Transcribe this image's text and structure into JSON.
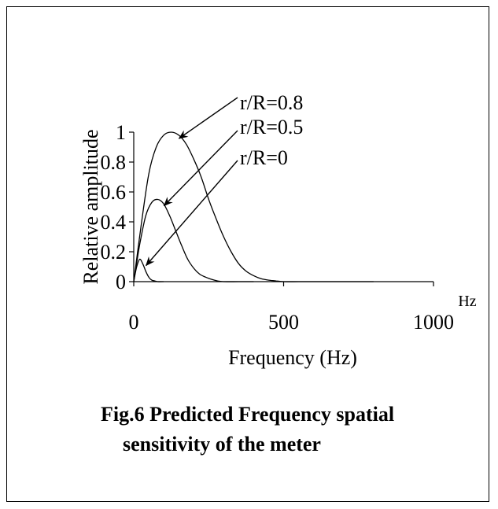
{
  "caption": {
    "line1": "Fig.6 Predicted Frequency spatial",
    "line2": "sensitivity of the meter"
  },
  "chart_data": {
    "type": "line",
    "title": "",
    "xlabel": "Frequency (Hz)",
    "ylabel": "Relative amplitude",
    "x_unit_label": "Hz",
    "xlim": [
      0,
      1000
    ],
    "ylim": [
      0,
      1
    ],
    "x_ticks": [
      0,
      500,
      1000
    ],
    "x_tick_labels": [
      "0",
      "500",
      "1000"
    ],
    "y_ticks": [
      0,
      0.2,
      0.4,
      0.6,
      0.8,
      1
    ],
    "y_tick_labels": [
      "0",
      "0.2",
      "0.4",
      "0.6",
      "0.8",
      "1"
    ],
    "grid": false,
    "colors": {
      "line": "#000000"
    },
    "series": [
      {
        "name": "r/R=0.8",
        "x": [
          0,
          25,
          50,
          75,
          100,
          125,
          150,
          175,
          200,
          225,
          250,
          275,
          300,
          325,
          350,
          375,
          400,
          425,
          450,
          475,
          500,
          550,
          600,
          700,
          800
        ],
        "y": [
          0,
          0.38,
          0.72,
          0.9,
          0.98,
          1.0,
          0.98,
          0.92,
          0.82,
          0.7,
          0.55,
          0.42,
          0.3,
          0.2,
          0.12,
          0.07,
          0.04,
          0.02,
          0.01,
          0.005,
          0,
          0,
          0,
          0,
          0
        ]
      },
      {
        "name": "r/R=0.5",
        "x": [
          0,
          20,
          40,
          60,
          80,
          100,
          120,
          140,
          160,
          180,
          200,
          220,
          240,
          260,
          280,
          300,
          350,
          400
        ],
        "y": [
          0,
          0.25,
          0.44,
          0.53,
          0.55,
          0.52,
          0.44,
          0.34,
          0.24,
          0.15,
          0.09,
          0.05,
          0.03,
          0.015,
          0.005,
          0,
          0,
          0
        ]
      },
      {
        "name": "r/R=0",
        "x": [
          0,
          10,
          20,
          30,
          40,
          50,
          60,
          70,
          80,
          100
        ],
        "y": [
          0,
          0.1,
          0.15,
          0.12,
          0.07,
          0.03,
          0.01,
          0.005,
          0,
          0
        ]
      }
    ],
    "annotations": [
      {
        "text": "r/R=0.8",
        "series": "r/R=0.8",
        "point": [
          130,
          1.0
        ]
      },
      {
        "text": "r/R=0.5",
        "series": "r/R=0.5",
        "point": [
          80,
          0.55
        ]
      },
      {
        "text": "r/R=0",
        "series": "r/R=0",
        "point": [
          20,
          0.15
        ]
      }
    ]
  }
}
